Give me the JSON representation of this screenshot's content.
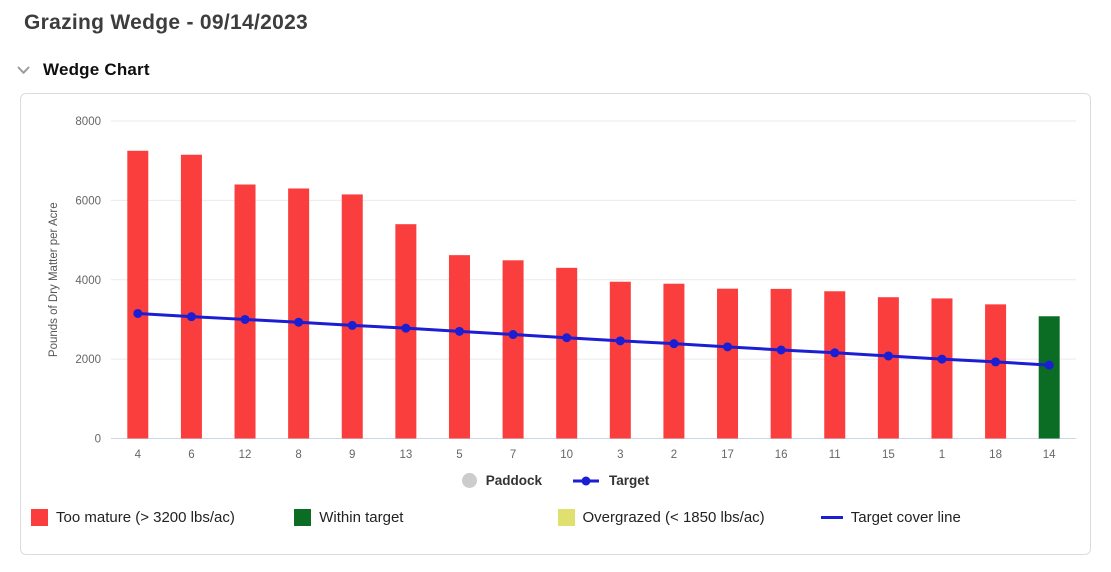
{
  "page": {
    "title": "Grazing Wedge - 09/14/2023"
  },
  "section": {
    "title": "Wedge Chart",
    "chevron_icon": "chevron-down"
  },
  "chart_data": {
    "type": "bar",
    "title": "Wedge Chart",
    "categories": [
      "4",
      "6",
      "12",
      "8",
      "9",
      "13",
      "5",
      "7",
      "10",
      "3",
      "2",
      "17",
      "16",
      "11",
      "15",
      "1",
      "18",
      "14"
    ],
    "xlabel": "Paddock",
    "ylabel": "Pounds of Dry Matter per Acre",
    "ylim": [
      0,
      8000
    ],
    "yticks": [
      0,
      2000,
      4000,
      6000,
      8000
    ],
    "grid": true,
    "legend_position": "bottom-center",
    "series": [
      {
        "name": "Paddock",
        "type": "bar",
        "values": [
          7250,
          7150,
          6400,
          6300,
          6150,
          5400,
          4620,
          4490,
          4300,
          3950,
          3900,
          3775,
          3770,
          3710,
          3560,
          3530,
          3380,
          3080
        ]
      },
      {
        "name": "Target",
        "type": "line",
        "values": [
          3150,
          3070,
          3000,
          2930,
          2850,
          2780,
          2700,
          2620,
          2540,
          2460,
          2390,
          2310,
          2230,
          2160,
          2080,
          2000,
          1930,
          1850
        ]
      }
    ],
    "thresholds": {
      "too_mature_min": 3200,
      "overgrazed_max": 1850
    }
  },
  "legend": {
    "items": [
      {
        "label": "Too mature (> 3200 lbs/ac)",
        "shape": "square",
        "color_key": "too_mature"
      },
      {
        "label": "Within target",
        "shape": "square",
        "color_key": "within_target"
      },
      {
        "label": "Overgrazed (< 1850 lbs/ac)",
        "shape": "square",
        "color_key": "overgrazed"
      },
      {
        "label": "Target cover line",
        "shape": "line",
        "color_key": "target_line"
      }
    ]
  },
  "colors": {
    "too_mature": "#fa3e3e",
    "within_target": "#0a6d23",
    "overgrazed": "#dfe06e",
    "target_line": "#1b1ed3",
    "legend_paddock": "#cccccc",
    "gridline": "#e9e9f0",
    "axis_line": "#ccd6eb",
    "tick_text": "#666666"
  }
}
